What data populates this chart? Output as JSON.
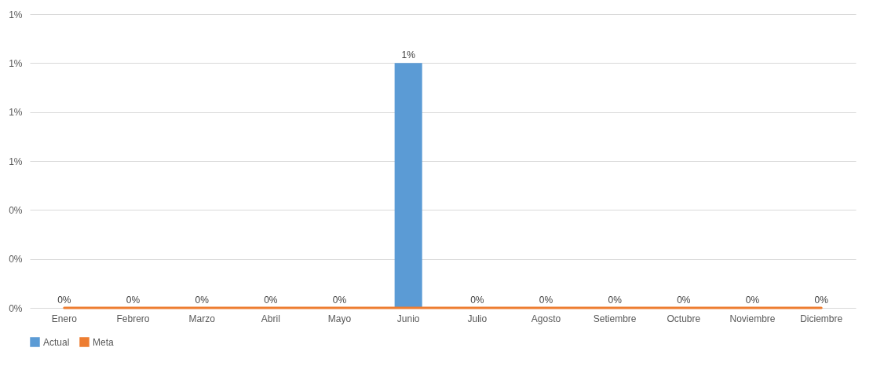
{
  "chart_data": {
    "type": "bar",
    "categories": [
      "Enero",
      "Febrero",
      "Marzo",
      "Abril",
      "Mayo",
      "Junio",
      "Julio",
      "Agosto",
      "Setiembre",
      "Octubre",
      "Noviembre",
      "Diciembre"
    ],
    "series": [
      {
        "name": "Actual",
        "color": "#5b9bd5",
        "values": [
          0,
          0,
          0,
          0,
          0,
          1.0,
          0,
          0,
          0,
          0,
          0,
          0
        ],
        "value_labels": [
          "0%",
          "0%",
          "0%",
          "0%",
          "0%",
          "1%",
          "0%",
          "0%",
          "0%",
          "0%",
          "0%",
          "0%"
        ]
      },
      {
        "name": "Meta",
        "type": "line",
        "color": "#ed7d31",
        "values": [
          0,
          0,
          0,
          0,
          0,
          0,
          0,
          0,
          0,
          0,
          0,
          0
        ]
      }
    ],
    "ylim": [
      0,
      1.2
    ],
    "yticks": [
      {
        "value": 0,
        "label": "0%"
      },
      {
        "value": 0.2,
        "label": "0%"
      },
      {
        "value": 0.4,
        "label": "0%"
      },
      {
        "value": 0.6,
        "label": "1%"
      },
      {
        "value": 0.8,
        "label": "1%"
      },
      {
        "value": 1.0,
        "label": "1%"
      },
      {
        "value": 1.2,
        "label": "1%"
      }
    ],
    "grid": "y",
    "legend": "bottom"
  }
}
